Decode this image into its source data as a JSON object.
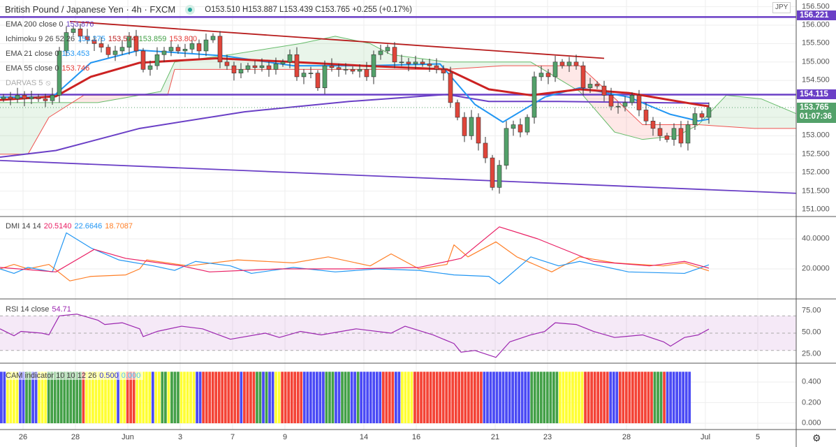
{
  "header": {
    "title": "British Pound / Japanese Yen · 4h · FXCM",
    "ohlc": "O153.510 H153.887 L153.439 C153.765 +0.255 (+0.17%)"
  },
  "legends": {
    "ema200": {
      "label": "EMA 200 close 0",
      "value": "153.876"
    },
    "ichimoku": {
      "label": "Ichimoku 9 26 52 26",
      "v1": "153.275",
      "v2": "153.574",
      "v3": "153.859",
      "v4": "153.800"
    },
    "ema21": {
      "label": "EMA 21 close 0",
      "value": "153.453"
    },
    "ema55": {
      "label": "EMA 55 close 0",
      "value": "153.746"
    },
    "darvas": {
      "label": "DARVAS 5"
    },
    "dmi": {
      "label": "DMI 14 14",
      "v1": "20.5140",
      "v2": "22.6646",
      "v3": "18.7087"
    },
    "rsi": {
      "label": "RSI 14 close",
      "value": "54.71"
    },
    "cam": {
      "label": "CAM indicator 10 10 12 26",
      "v1": "0.500",
      "v2": "0.000"
    }
  },
  "price_axis": {
    "currency": "JPY",
    "ticks": [
      "156.500",
      "156.000",
      "155.500",
      "155.000",
      "154.500",
      "153.000",
      "152.500",
      "152.000",
      "151.500",
      "151.000"
    ],
    "labels": {
      "level_high": "156.221",
      "level_mid": "154.115",
      "last_price": "153.765",
      "countdown": "01:07:36"
    }
  },
  "dmi_axis": [
    "40.0000",
    "20.0000"
  ],
  "rsi_axis": [
    "75.00",
    "50.00",
    "25.00"
  ],
  "cam_axis": [
    "0.400",
    "0.200",
    "0.000"
  ],
  "time_axis": [
    "26",
    "28",
    "Jun",
    "3",
    "7",
    "9",
    "14",
    "16",
    "21",
    "23",
    "28",
    "Jul",
    "5"
  ],
  "colors": {
    "up": "#53a16a",
    "down": "#e0453a",
    "ema200": "#6a3fc6",
    "ema55": "#cc2222",
    "ema21": "#2196f3",
    "level": "#6a3fc6",
    "last": "#53a16a"
  },
  "chart_data": {
    "type": "candlestick",
    "closes": [
      154.05,
      154.0,
      154.1,
      154.0,
      154.05,
      154.0,
      153.95,
      154.1,
      155.3,
      155.8,
      155.9,
      155.7,
      155.6,
      155.5,
      155.4,
      155.2,
      155.3,
      155.4,
      155.7,
      155.3,
      154.8,
      154.9,
      155.2,
      155.3,
      155.4,
      155.3,
      155.35,
      155.5,
      155.3,
      155.6,
      155.7,
      155.0,
      154.9,
      154.7,
      154.8,
      154.9,
      154.85,
      154.9,
      154.8,
      154.95,
      155.0,
      155.2,
      154.6,
      154.7,
      154.7,
      154.3,
      154.9,
      154.85,
      154.8,
      154.8,
      154.75,
      154.8,
      154.6,
      155.2,
      155.3,
      155.4,
      155.0,
      155.0,
      154.95,
      155.0,
      154.95,
      154.9,
      154.8,
      154.7,
      153.9,
      153.5,
      153.0,
      153.5,
      152.8,
      152.4,
      151.6,
      152.2,
      153.2,
      153.3,
      153.1,
      153.5,
      154.6,
      154.7,
      154.6,
      155.0,
      154.9,
      155.0,
      154.9,
      154.3,
      154.4,
      154.35,
      154.1,
      153.8,
      153.8,
      153.9,
      154.1,
      153.7,
      153.4,
      153.2,
      153.0,
      152.9,
      153.2,
      152.8,
      153.3,
      153.6,
      153.5,
      153.765
    ],
    "price_range": [
      150.8,
      156.65
    ],
    "horizontal_levels": [
      156.221,
      154.115
    ],
    "downtrend_line": [
      [
        9.5,
        156.1
      ],
      [
        86,
        155.1
      ]
    ],
    "lower_channel_line": [
      [
        -0.5,
        152.33
      ],
      [
        113.5,
        151.44
      ]
    ],
    "ema200": [
      [
        -0.5,
        152.42
      ],
      [
        7.5,
        152.6
      ],
      [
        19.5,
        153.2
      ],
      [
        34.5,
        153.65
      ],
      [
        49.5,
        153.93
      ],
      [
        63.5,
        154.12
      ],
      [
        69.5,
        153.93
      ],
      [
        79.5,
        153.93
      ],
      [
        101,
        153.88
      ]
    ],
    "ema55": [
      [
        -0.5,
        153.97
      ],
      [
        7.5,
        154.07
      ],
      [
        12.5,
        154.6
      ],
      [
        19.5,
        154.98
      ],
      [
        30.5,
        155.1
      ],
      [
        41.5,
        155.0
      ],
      [
        51.5,
        154.9
      ],
      [
        63.5,
        154.8
      ],
      [
        69.5,
        154.26
      ],
      [
        75.5,
        154.1
      ],
      [
        82.5,
        154.26
      ],
      [
        89.5,
        154.16
      ],
      [
        99.5,
        153.84
      ],
      [
        101,
        153.8
      ]
    ],
    "ema21": [
      [
        -0.5,
        154.05
      ],
      [
        7,
        154.05
      ],
      [
        8.5,
        154.3
      ],
      [
        12.5,
        154.98
      ],
      [
        19.5,
        155.32
      ],
      [
        31.5,
        155.17
      ],
      [
        41.5,
        154.9
      ],
      [
        51.5,
        154.9
      ],
      [
        62.5,
        154.95
      ],
      [
        67.5,
        153.85
      ],
      [
        71.5,
        153.37
      ],
      [
        77.5,
        154.05
      ],
      [
        82.5,
        154.3
      ],
      [
        89.5,
        154.05
      ],
      [
        95.5,
        153.58
      ],
      [
        99.5,
        153.4
      ],
      [
        101,
        153.45
      ]
    ],
    "span_a": [
      [
        -0.5,
        153.9
      ],
      [
        13.5,
        153.9
      ],
      [
        22.5,
        154.2
      ],
      [
        24.5,
        155.0
      ],
      [
        32.5,
        155.2
      ],
      [
        42.5,
        155.5
      ],
      [
        47.5,
        155.7
      ],
      [
        52.5,
        155.5
      ],
      [
        55.5,
        155.2
      ],
      [
        63.5,
        155.0
      ],
      [
        75.5,
        155.0
      ],
      [
        82.5,
        154.2
      ],
      [
        87.5,
        153.1
      ],
      [
        91.5,
        152.9
      ],
      [
        96.5,
        153.0
      ],
      [
        99.5,
        153.3
      ],
      [
        103.5,
        154.1
      ],
      [
        108.5,
        154.0
      ],
      [
        113.5,
        153.6
      ]
    ],
    "span_b": [
      [
        -0.5,
        152.5
      ],
      [
        3.5,
        152.5
      ],
      [
        6.5,
        153.5
      ],
      [
        11.5,
        154.1
      ],
      [
        23.5,
        154.1
      ],
      [
        24.5,
        154.8
      ],
      [
        63.5,
        154.8
      ],
      [
        71.5,
        154.9
      ],
      [
        82.5,
        154.9
      ],
      [
        86.5,
        154.2
      ],
      [
        91.5,
        153.3
      ],
      [
        99.5,
        153.3
      ],
      [
        107.5,
        153.2
      ],
      [
        113.5,
        153.2
      ]
    ],
    "dmi": {
      "ylim": [
        0,
        55
      ],
      "plus_di": [
        [
          -0.5,
          21
        ],
        [
          7.5,
          18
        ],
        [
          13,
          33
        ],
        [
          17.5,
          27
        ],
        [
          25.5,
          22
        ],
        [
          29.5,
          18
        ],
        [
          39.5,
          20
        ],
        [
          49.5,
          20
        ],
        [
          59.5,
          21
        ],
        [
          65.5,
          27
        ],
        [
          71,
          48
        ],
        [
          76.5,
          40
        ],
        [
          84.5,
          25
        ],
        [
          92.5,
          22
        ],
        [
          97.5,
          25
        ],
        [
          101,
          20.5
        ]
      ],
      "minus_di": [
        [
          -0.5,
          20
        ],
        [
          1.5,
          17
        ],
        [
          3.5,
          21
        ],
        [
          7,
          18
        ],
        [
          9,
          44
        ],
        [
          12.5,
          34
        ],
        [
          16.5,
          26
        ],
        [
          21.5,
          22
        ],
        [
          24.5,
          19
        ],
        [
          27.5,
          25
        ],
        [
          32.5,
          22
        ],
        [
          35.5,
          17
        ],
        [
          41.5,
          21
        ],
        [
          47.5,
          18
        ],
        [
          53.5,
          20
        ],
        [
          59.5,
          19
        ],
        [
          64.5,
          16
        ],
        [
          69.5,
          15
        ],
        [
          71,
          10
        ],
        [
          75.5,
          28
        ],
        [
          79.5,
          22
        ],
        [
          82.5,
          25
        ],
        [
          89.5,
          18
        ],
        [
          97.5,
          17
        ],
        [
          101,
          22.7
        ]
      ],
      "adx": [
        [
          -0.5,
          20
        ],
        [
          1.5,
          23
        ],
        [
          3.5,
          20
        ],
        [
          6.5,
          23
        ],
        [
          9.5,
          12
        ],
        [
          12.5,
          15
        ],
        [
          17.5,
          16
        ],
        [
          19.5,
          20
        ],
        [
          20.5,
          26
        ],
        [
          26.5,
          22
        ],
        [
          33.5,
          26
        ],
        [
          41.5,
          24
        ],
        [
          46.5,
          28
        ],
        [
          52.5,
          22
        ],
        [
          55.5,
          30
        ],
        [
          59.5,
          20
        ],
        [
          63.5,
          23
        ],
        [
          64.5,
          36
        ],
        [
          66.5,
          28
        ],
        [
          70.5,
          38
        ],
        [
          73.5,
          28
        ],
        [
          78.5,
          18
        ],
        [
          82.5,
          28
        ],
        [
          87.5,
          24
        ],
        [
          94.5,
          22
        ],
        [
          97.5,
          24
        ],
        [
          101,
          18.7
        ]
      ]
    },
    "rsi": {
      "ylim": [
        15,
        85
      ],
      "bands": [
        30,
        70
      ],
      "values": [
        [
          -0.5,
          55
        ],
        [
          1.5,
          47
        ],
        [
          2.5,
          52
        ],
        [
          5.5,
          50
        ],
        [
          6.5,
          48
        ],
        [
          8,
          70
        ],
        [
          10.5,
          72
        ],
        [
          13.5,
          65
        ],
        [
          14.5,
          60
        ],
        [
          17,
          62
        ],
        [
          19.5,
          55
        ],
        [
          20,
          46
        ],
        [
          22,
          52
        ],
        [
          25.5,
          58
        ],
        [
          28.5,
          55
        ],
        [
          29.5,
          52
        ],
        [
          32.5,
          43
        ],
        [
          37.5,
          50
        ],
        [
          39.5,
          45
        ],
        [
          42.5,
          52
        ],
        [
          45.5,
          48
        ],
        [
          50.5,
          55
        ],
        [
          55.5,
          50
        ],
        [
          57.5,
          58
        ],
        [
          61.5,
          48
        ],
        [
          64.5,
          38
        ],
        [
          65.5,
          28
        ],
        [
          67.5,
          30
        ],
        [
          70.5,
          22
        ],
        [
          72.5,
          40
        ],
        [
          75.5,
          48
        ],
        [
          77.5,
          52
        ],
        [
          79,
          62
        ],
        [
          82,
          60
        ],
        [
          84.5,
          52
        ],
        [
          87.5,
          45
        ],
        [
          91.5,
          48
        ],
        [
          94.5,
          40
        ],
        [
          95.5,
          35
        ],
        [
          97.5,
          45
        ],
        [
          99.5,
          48
        ],
        [
          101,
          54.7
        ]
      ]
    },
    "cam": {
      "value": 0.5,
      "ylim": [
        0,
        0.55
      ],
      "runs": [
        [
          "blue",
          2
        ],
        [
          "yellow",
          4
        ],
        [
          "blue",
          2
        ],
        [
          "green",
          2
        ],
        [
          "blue",
          2
        ],
        [
          "yellow",
          3
        ],
        [
          "green",
          11
        ],
        [
          "red",
          1
        ],
        [
          "yellow",
          10
        ],
        [
          "blue",
          1
        ],
        [
          "yellow",
          2
        ],
        [
          "red",
          3
        ],
        [
          "yellow",
          5
        ],
        [
          "blue",
          1
        ],
        [
          "yellow",
          2
        ],
        [
          "green",
          2
        ],
        [
          "yellow",
          1
        ],
        [
          "green",
          3
        ],
        [
          "yellow",
          5
        ],
        [
          "blue",
          2
        ],
        [
          "red",
          12
        ],
        [
          "blue",
          1
        ],
        [
          "red",
          4
        ],
        [
          "green",
          2
        ],
        [
          "blue",
          1
        ],
        [
          "green",
          1
        ],
        [
          "blue",
          2
        ],
        [
          "yellow",
          2
        ],
        [
          "red",
          7
        ],
        [
          "blue",
          7
        ],
        [
          "green",
          3
        ],
        [
          "blue",
          2
        ],
        [
          "green",
          3
        ],
        [
          "blue",
          2
        ],
        [
          "green",
          1
        ],
        [
          "blue",
          7
        ],
        [
          "red",
          4
        ],
        [
          "blue",
          2
        ],
        [
          "yellow",
          4
        ],
        [
          "red",
          22
        ],
        [
          "blue",
          15
        ],
        [
          "green",
          9
        ],
        [
          "yellow",
          8
        ],
        [
          "red",
          8
        ],
        [
          "blue",
          3
        ],
        [
          "red",
          11
        ],
        [
          "green",
          3
        ],
        [
          "red",
          1
        ],
        [
          "blue",
          8
        ]
      ]
    }
  }
}
